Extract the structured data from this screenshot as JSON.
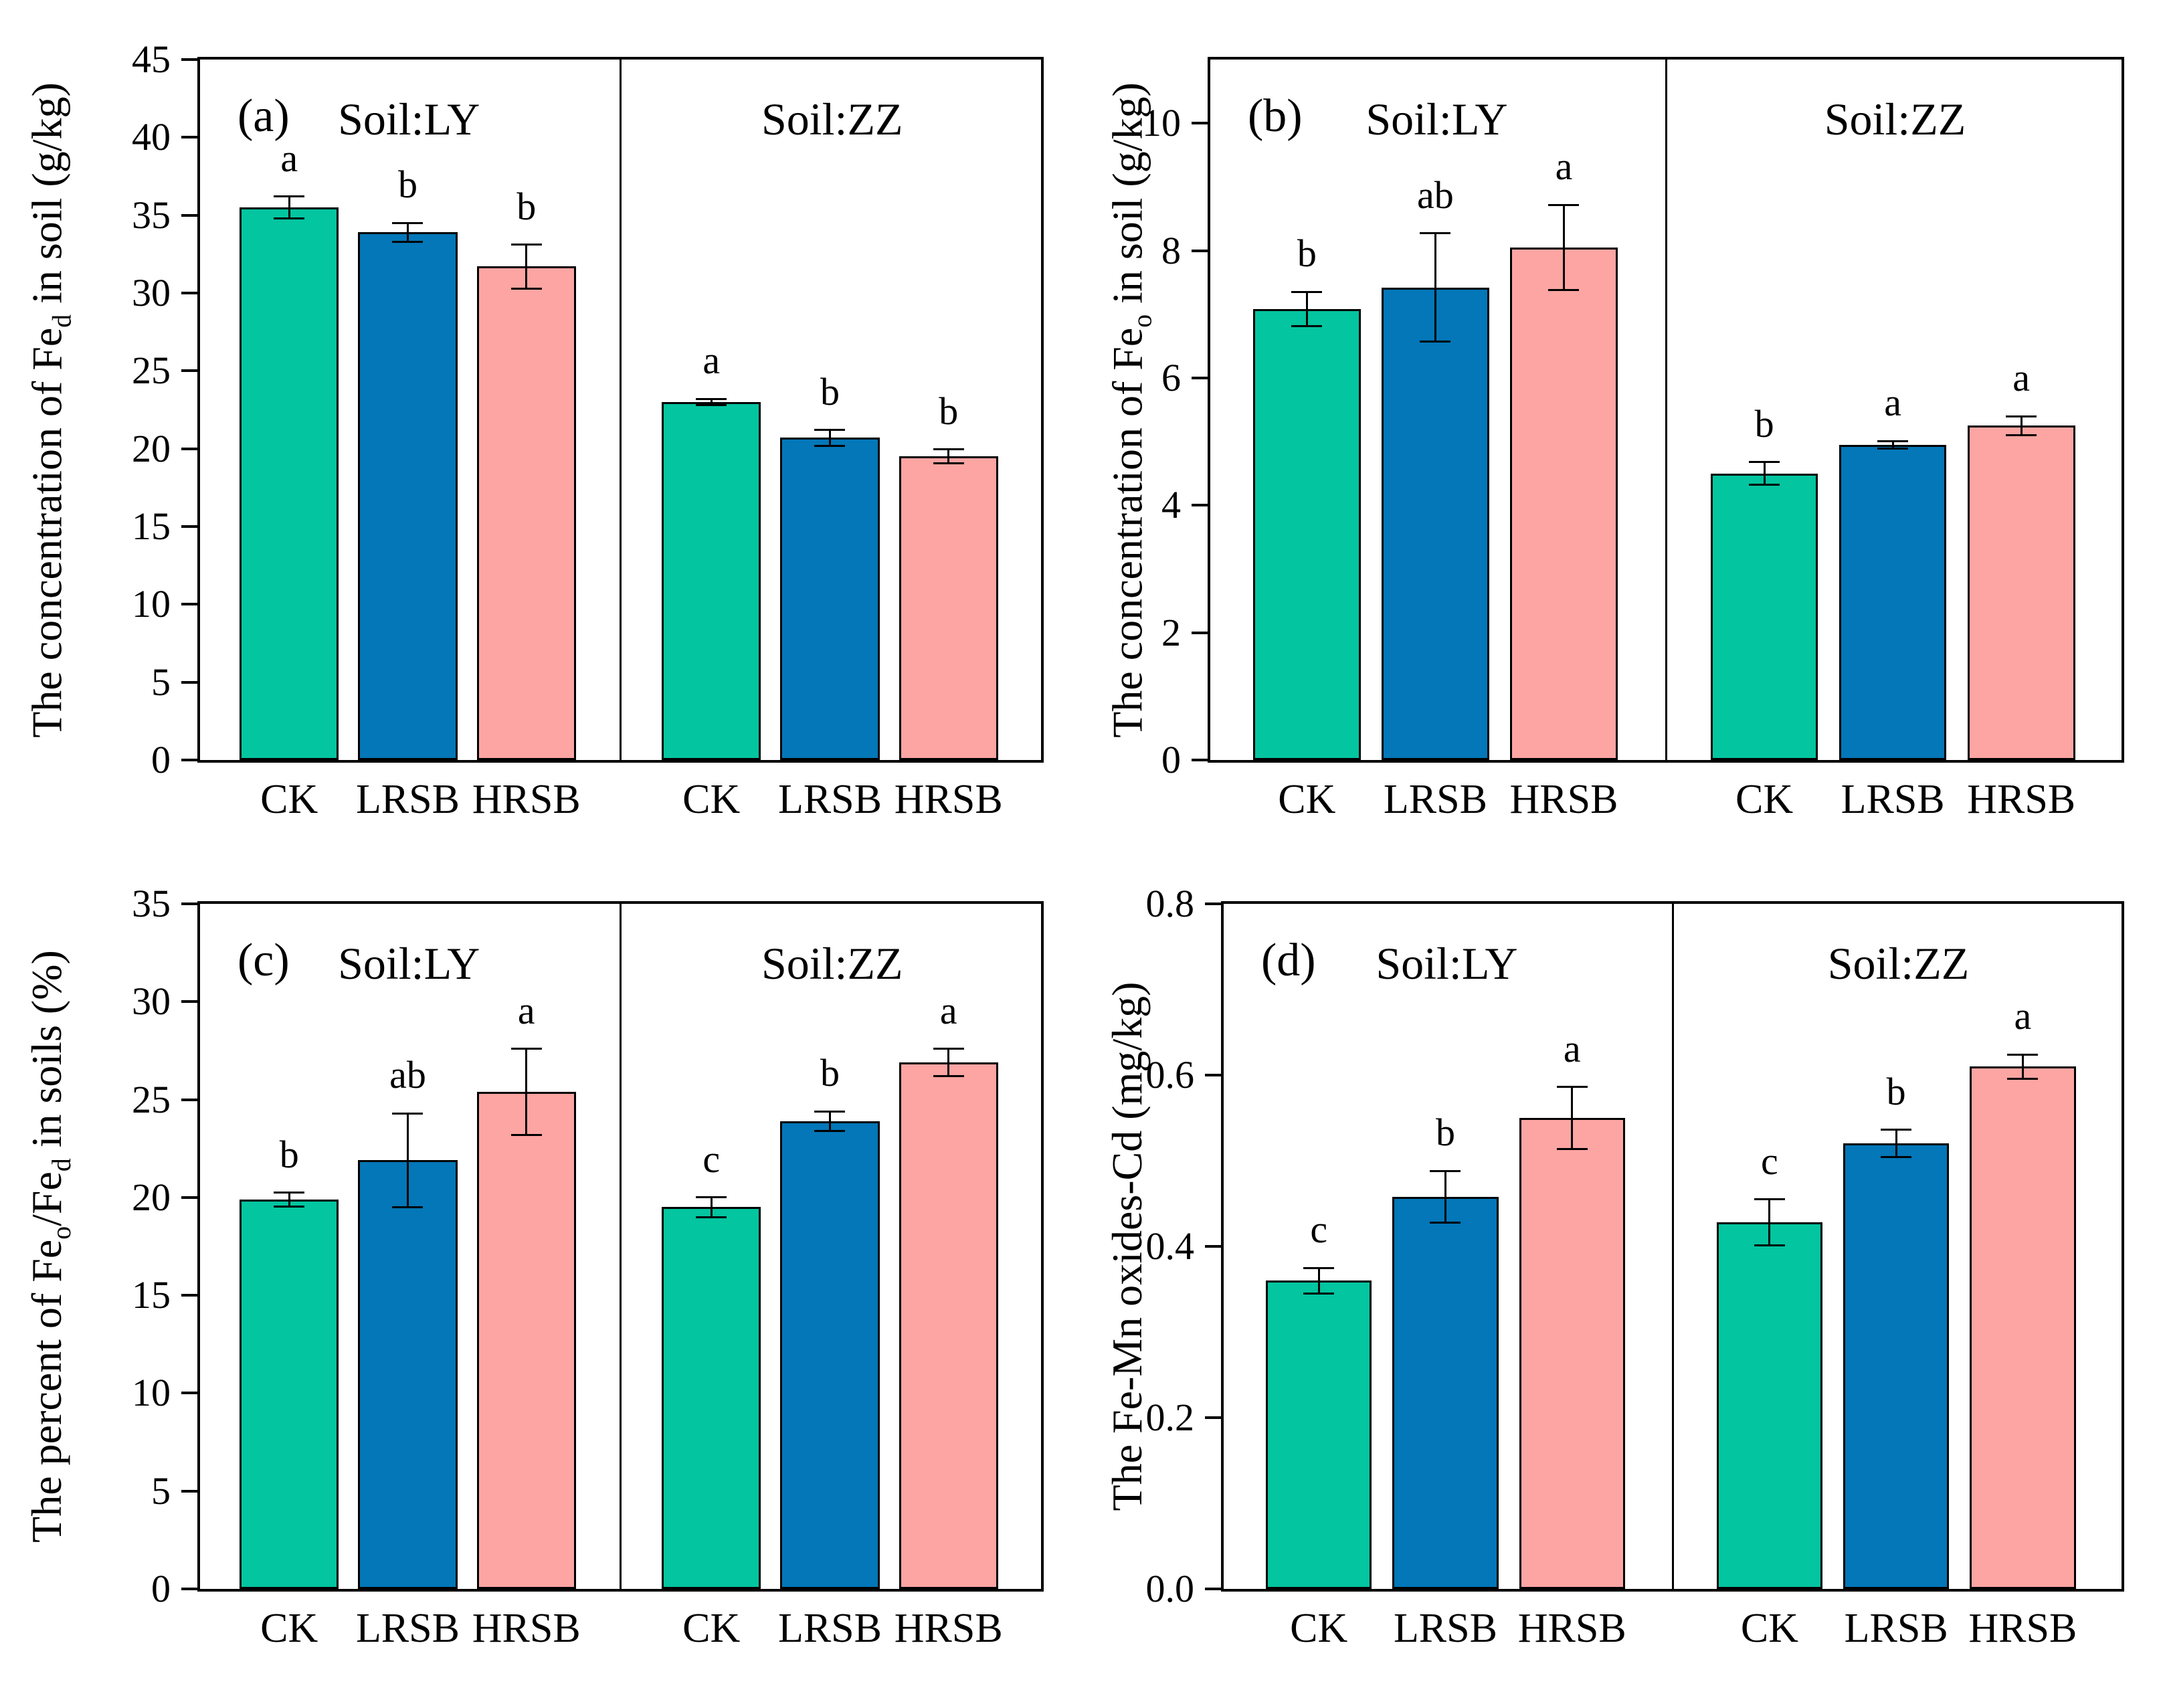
{
  "figure_title": "",
  "colors": {
    "green": "#03C5A0",
    "blue": "#0377B8",
    "pink": "#FCA5A3",
    "axis": "#000000",
    "background": "#FFFFFF"
  },
  "treatments": [
    "CK",
    "LRSB",
    "HRSB"
  ],
  "soil_groups": [
    "Soil:LY",
    "Soil:ZZ"
  ],
  "chart_data": [
    {
      "type": "bar",
      "panel_label": "(a)",
      "ylabel_parts": [
        {
          "text": "The  concentration of Fe",
          "sub": false
        },
        {
          "text": "d",
          "sub": true
        },
        {
          "text": " in soil (g/kg)",
          "sub": false
        }
      ],
      "ylim": [
        0,
        45
      ],
      "yticks": [
        "0",
        "5",
        "10",
        "15",
        "20",
        "25",
        "30",
        "35",
        "40",
        "45"
      ],
      "grid": false,
      "groups": [
        {
          "title": "Soil:LY",
          "bars": [
            {
              "category": "CK",
              "value": 35.5,
              "error": 0.7,
              "letter": "a",
              "color": "green"
            },
            {
              "category": "LRSB",
              "value": 33.9,
              "error": 0.6,
              "letter": "b",
              "color": "blue"
            },
            {
              "category": "HRSB",
              "value": 31.7,
              "error": 1.4,
              "letter": "b",
              "color": "pink"
            }
          ]
        },
        {
          "title": "Soil:ZZ",
          "bars": [
            {
              "category": "CK",
              "value": 23.0,
              "error": 0.2,
              "letter": "a",
              "color": "green"
            },
            {
              "category": "LRSB",
              "value": 20.7,
              "error": 0.5,
              "letter": "b",
              "color": "blue"
            },
            {
              "category": "HRSB",
              "value": 19.5,
              "error": 0.45,
              "letter": "b",
              "color": "pink"
            }
          ]
        }
      ]
    },
    {
      "type": "bar",
      "panel_label": "(b)",
      "ylabel_parts": [
        {
          "text": "The  concentration of Fe",
          "sub": false
        },
        {
          "text": "o",
          "sub": true
        },
        {
          "text": " in soil (g/kg)",
          "sub": false
        }
      ],
      "ylim": [
        0,
        11
      ],
      "yticks": [
        "0",
        "2",
        "4",
        "6",
        "8",
        "10"
      ],
      "grid": false,
      "groups": [
        {
          "title": "Soil:LY",
          "bars": [
            {
              "category": "CK",
              "value": 7.08,
              "error": 0.27,
              "letter": "b",
              "color": "green"
            },
            {
              "category": "LRSB",
              "value": 7.42,
              "error": 0.85,
              "letter": "ab",
              "color": "blue"
            },
            {
              "category": "HRSB",
              "value": 8.05,
              "error": 0.67,
              "letter": "a",
              "color": "pink"
            }
          ]
        },
        {
          "title": "Soil:ZZ",
          "bars": [
            {
              "category": "CK",
              "value": 4.5,
              "error": 0.18,
              "letter": "b",
              "color": "green"
            },
            {
              "category": "LRSB",
              "value": 4.95,
              "error": 0.06,
              "letter": "a",
              "color": "blue"
            },
            {
              "category": "HRSB",
              "value": 5.25,
              "error": 0.15,
              "letter": "a",
              "color": "pink"
            }
          ]
        }
      ]
    },
    {
      "type": "bar",
      "panel_label": "(c)",
      "ylabel_parts": [
        {
          "text": "The percent of Fe",
          "sub": false
        },
        {
          "text": "o",
          "sub": true
        },
        {
          "text": "/Fe",
          "sub": false
        },
        {
          "text": "d",
          "sub": true
        },
        {
          "text": " in soils (%)",
          "sub": false
        }
      ],
      "ylim": [
        0,
        35
      ],
      "yticks": [
        "0",
        "5",
        "10",
        "15",
        "20",
        "25",
        "30",
        "35"
      ],
      "grid": false,
      "groups": [
        {
          "title": "Soil:LY",
          "bars": [
            {
              "category": "CK",
              "value": 19.9,
              "error": 0.35,
              "letter": "b",
              "color": "green"
            },
            {
              "category": "LRSB",
              "value": 21.9,
              "error": 2.4,
              "letter": "ab",
              "color": "blue"
            },
            {
              "category": "HRSB",
              "value": 25.4,
              "error": 2.2,
              "letter": "a",
              "color": "pink"
            }
          ]
        },
        {
          "title": "Soil:ZZ",
          "bars": [
            {
              "category": "CK",
              "value": 19.5,
              "error": 0.5,
              "letter": "c",
              "color": "green"
            },
            {
              "category": "LRSB",
              "value": 23.9,
              "error": 0.5,
              "letter": "b",
              "color": "blue"
            },
            {
              "category": "HRSB",
              "value": 26.9,
              "error": 0.7,
              "letter": "a",
              "color": "pink"
            }
          ]
        }
      ]
    },
    {
      "type": "bar",
      "panel_label": "(d)",
      "ylabel_parts": [
        {
          "text": "The Fe-Mn oxides-Cd (mg/kg)",
          "sub": false
        }
      ],
      "ylim": [
        0,
        0.8
      ],
      "yticks": [
        "0.0",
        "0.2",
        "0.4",
        "0.6",
        "0.8"
      ],
      "grid": false,
      "groups": [
        {
          "title": "Soil:LY",
          "bars": [
            {
              "category": "CK",
              "value": 0.36,
              "error": 0.015,
              "letter": "c",
              "color": "green"
            },
            {
              "category": "LRSB",
              "value": 0.458,
              "error": 0.03,
              "letter": "b",
              "color": "blue"
            },
            {
              "category": "HRSB",
              "value": 0.55,
              "error": 0.036,
              "letter": "a",
              "color": "pink"
            }
          ]
        },
        {
          "title": "Soil:ZZ",
          "bars": [
            {
              "category": "CK",
              "value": 0.428,
              "error": 0.027,
              "letter": "c",
              "color": "green"
            },
            {
              "category": "LRSB",
              "value": 0.52,
              "error": 0.016,
              "letter": "b",
              "color": "blue"
            },
            {
              "category": "HRSB",
              "value": 0.61,
              "error": 0.014,
              "letter": "a",
              "color": "pink"
            }
          ]
        }
      ]
    }
  ]
}
